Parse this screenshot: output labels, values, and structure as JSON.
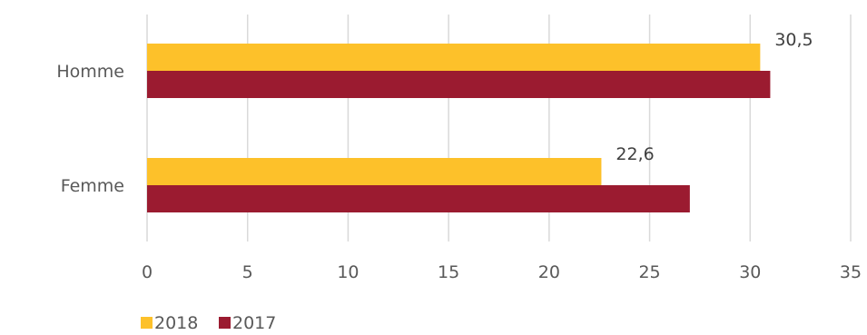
{
  "chart_data": {
    "type": "bar",
    "orientation": "horizontal",
    "categories": [
      "Homme",
      "Femme"
    ],
    "series": [
      {
        "name": "2018",
        "values": [
          30.5,
          22.6
        ],
        "color": "#FDC12A",
        "data_labels": [
          "30,5",
          "22,6"
        ]
      },
      {
        "name": "2017",
        "values": [
          31.0,
          27.0
        ],
        "color": "#9B1B30"
      }
    ],
    "xlim": [
      0,
      35
    ],
    "xticks": [
      0,
      5,
      10,
      15,
      20,
      25,
      30,
      35
    ],
    "grid": "vertical",
    "legend_position": "bottom-left"
  }
}
